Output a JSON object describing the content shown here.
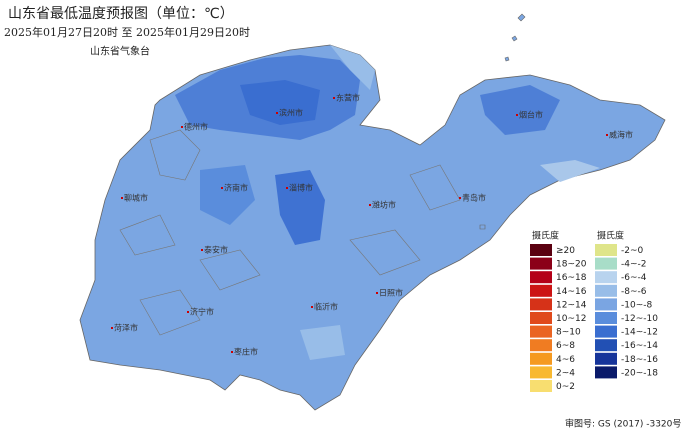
{
  "header": {
    "title": "山东省最低温度预报图（单位：℃）",
    "period": "2025年01月27日20时  至  2025年01月29日20时",
    "agency": "山东省气象台"
  },
  "cities": [
    "德州市",
    "滨州市",
    "东营市",
    "烟台市",
    "威海市",
    "聊城市",
    "济南市",
    "淄博市",
    "潍坊市",
    "青岛市",
    "泰安市",
    "日照市",
    "临沂市",
    "济宁市",
    "菏泽市",
    "枣庄市"
  ],
  "legend": {
    "warm_unit": "摄氏度",
    "cold_unit": "摄氏度",
    "warm": [
      {
        "label": "≥20",
        "color": "#5a0010"
      },
      {
        "label": "18~20",
        "color": "#8b0018"
      },
      {
        "label": "16~18",
        "color": "#b40018"
      },
      {
        "label": "14~16",
        "color": "#cc1414"
      },
      {
        "label": "12~14",
        "color": "#d63218"
      },
      {
        "label": "10~12",
        "color": "#e04a1c"
      },
      {
        "label": "8~10",
        "color": "#ea6422"
      },
      {
        "label": "6~8",
        "color": "#f07c22"
      },
      {
        "label": "4~6",
        "color": "#f59a20"
      },
      {
        "label": "2~4",
        "color": "#f8b830"
      },
      {
        "label": "0~2",
        "color": "#f8de70"
      }
    ],
    "cold": [
      {
        "label": "-2~0",
        "color": "#dfe58a"
      },
      {
        "label": "-4~-2",
        "color": "#a8ddc8"
      },
      {
        "label": "-6~-4",
        "color": "#b8d3ee"
      },
      {
        "label": "-8~-6",
        "color": "#98bde8"
      },
      {
        "label": "-10~-8",
        "color": "#7aa5e2"
      },
      {
        "label": "-12~-10",
        "color": "#5a8ddc"
      },
      {
        "label": "-14~-12",
        "color": "#3a6ed0"
      },
      {
        "label": "-16~-14",
        "color": "#2250b4"
      },
      {
        "label": "-18~-16",
        "color": "#16349a"
      },
      {
        "label": "-20~-18",
        "color": "#0a1a6a"
      }
    ]
  },
  "footer": {
    "approval": "审图号: GS (2017) -3320号"
  }
}
